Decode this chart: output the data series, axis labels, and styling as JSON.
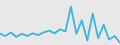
{
  "y_values": [
    2.5,
    2.0,
    2.8,
    1.8,
    2.5,
    2.0,
    2.6,
    2.2,
    2.8,
    3.2,
    2.6,
    3.5,
    3.0,
    8.5,
    2.5,
    5.5,
    1.0,
    7.0,
    1.5,
    4.5,
    1.2,
    2.0,
    0.5
  ],
  "line_color": "#3ab5e0",
  "line_width": 1.3,
  "background_color": "#e8e8e8",
  "ylim": [
    0.0,
    10.0
  ],
  "xlim": [
    0.0,
    22.0
  ]
}
